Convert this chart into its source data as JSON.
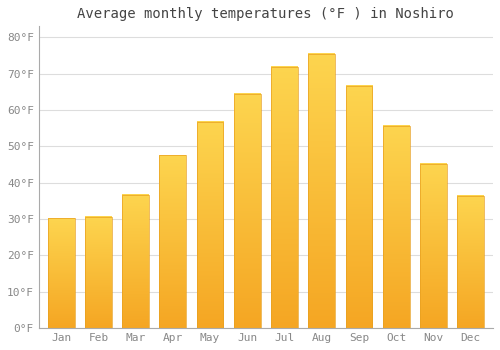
{
  "title": "Average monthly temperatures (°F ) in Noshiro",
  "months": [
    "Jan",
    "Feb",
    "Mar",
    "Apr",
    "May",
    "Jun",
    "Jul",
    "Aug",
    "Sep",
    "Oct",
    "Nov",
    "Dec"
  ],
  "values": [
    30.2,
    30.7,
    36.7,
    47.5,
    56.7,
    64.4,
    71.8,
    75.4,
    66.7,
    55.6,
    45.1,
    36.3
  ],
  "bar_color_bottom": "#F5A623",
  "bar_color_top": "#FDD54F",
  "bar_edge_color": "#E8A020",
  "background_color": "#FFFFFF",
  "grid_color": "#DDDDDD",
  "ytick_labels": [
    "0°F",
    "10°F",
    "20°F",
    "30°F",
    "40°F",
    "50°F",
    "60°F",
    "70°F",
    "80°F"
  ],
  "ytick_values": [
    0,
    10,
    20,
    30,
    40,
    50,
    60,
    70,
    80
  ],
  "ylim": [
    0,
    83
  ],
  "title_fontsize": 10,
  "tick_fontsize": 8,
  "title_color": "#444444",
  "font_color": "#888888"
}
